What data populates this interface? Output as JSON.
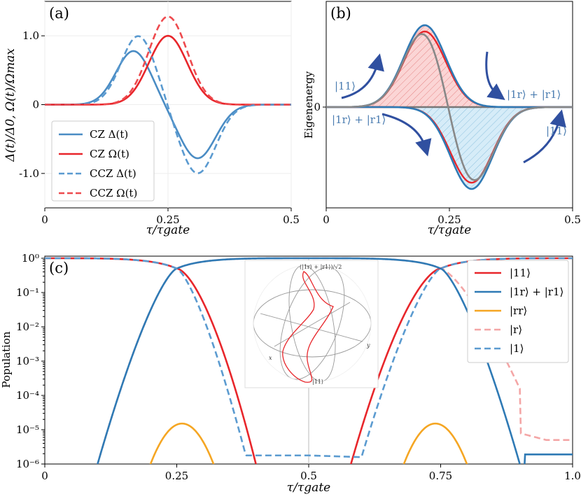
{
  "chart_data": [
    {
      "type": "line",
      "panel_label": "(a)",
      "xlabel": "τ/τgate",
      "ylabel": "Δ(t)/Δ0, Ω(t)/Ωmax",
      "xlim": [
        0,
        0.5
      ],
      "ylim": [
        -1.5,
        1.5
      ],
      "xticks": [
        "0",
        "0.25",
        "0.5"
      ],
      "yticks": [
        "1.0",
        "0",
        "-1.0"
      ],
      "ytick_values": [
        1.0,
        0,
        -1.0
      ],
      "xtick_values": [
        0,
        0.25,
        0.5
      ],
      "grid": true,
      "legend_position": "bottom-left",
      "series": [
        {
          "name": "CZ Δ(t)",
          "color": "#4a8cc4",
          "dash": false,
          "shape": "detuning",
          "amp": 0.78,
          "peak": 0.18,
          "trough": 0.31
        },
        {
          "name": "CZ Ω(t)",
          "color": "#e8262b",
          "dash": false,
          "shape": "rabi",
          "amp": 1.0,
          "center": 0.25
        },
        {
          "name": "CCZ Δ(t)",
          "color": "#5a9ad0",
          "dash": true,
          "shape": "detuning",
          "amp": 1.0,
          "peak": 0.19,
          "trough": 0.31
        },
        {
          "name": "CCZ Ω(t)",
          "color": "#ee4a4e",
          "dash": true,
          "shape": "rabi",
          "amp": 1.28,
          "center": 0.25
        }
      ]
    },
    {
      "type": "line",
      "panel_label": "(b)",
      "xlabel": "τ/τgate",
      "ylabel": "Eigenenergy",
      "xlim": [
        0,
        0.5
      ],
      "xticks": [
        "0",
        "0.25",
        "0.5"
      ],
      "xtick_values": [
        0,
        0.25,
        0.5
      ],
      "yticks": [
        "0"
      ],
      "annotations": [
        "|11⟩",
        "|1r⟩ + |r1⟩",
        "|1r⟩ + |r1⟩",
        "|11⟩"
      ]
    },
    {
      "type": "line",
      "panel_label": "(c)",
      "xlabel": "τ/τgate",
      "ylabel": "Population",
      "xlim": [
        0,
        1.0
      ],
      "ylim_log10": [
        -6,
        0
      ],
      "yscale": "log",
      "xticks": [
        "0",
        "0.25",
        "0.5",
        "0.75",
        "1.0"
      ],
      "xtick_values": [
        0,
        0.25,
        0.5,
        0.75,
        1.0
      ],
      "yticks": [
        "10⁰",
        "10⁻¹",
        "10⁻²",
        "10⁻³",
        "10⁻⁴",
        "10⁻⁵",
        "10⁻⁶"
      ],
      "ytick_exp": [
        0,
        -1,
        -2,
        -3,
        -4,
        -5,
        -6
      ],
      "legend_position": "top-right",
      "legend": [
        {
          "name": "|11⟩",
          "color": "#e8262b",
          "dash": false
        },
        {
          "name": "|1r⟩ + |r1⟩",
          "color": "#2f7ab5",
          "dash": false
        },
        {
          "name": "|rr⟩",
          "color": "#f5a623",
          "dash": false
        },
        {
          "name": "|r⟩",
          "color": "#f4a6a6",
          "dash": true
        },
        {
          "name": "|1⟩",
          "color": "#5b9bd0",
          "dash": true
        }
      ],
      "inset": {
        "top_label": "(|1r⟩ + |r1⟩)/√2",
        "bottom_label": "|11⟩",
        "x_label": "x",
        "y_label": "y"
      }
    }
  ]
}
